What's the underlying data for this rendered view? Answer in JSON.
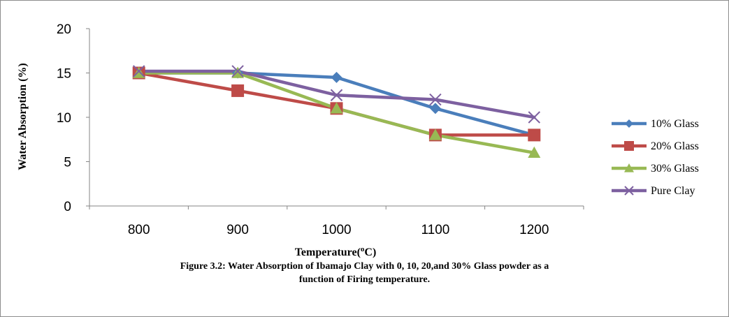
{
  "chart_data": {
    "type": "line",
    "categories": [
      "800",
      "900",
      "1000",
      "1100",
      "1200"
    ],
    "xlabel": "Temperature(oC)",
    "xlabel_main": "Temperature(",
    "xlabel_sup": "o",
    "xlabel_end": "C)",
    "ylabel": "Water Absorption (%)",
    "ylim": [
      0,
      20
    ],
    "yticks": [
      "0",
      "5",
      "10",
      "15",
      "20"
    ],
    "grid": false,
    "legend_position": "right",
    "series": [
      {
        "name": "10% Glass",
        "values": [
          15,
          15,
          14.5,
          11,
          8
        ],
        "color": "#4a7ebb",
        "marker": "diamond"
      },
      {
        "name": "20% Glass",
        "values": [
          15,
          13,
          11,
          8,
          8
        ],
        "color": "#be4b48",
        "marker": "square"
      },
      {
        "name": "30% Glass",
        "values": [
          15,
          15,
          11,
          8,
          6
        ],
        "color": "#98b954",
        "marker": "triangle"
      },
      {
        "name": "Pure Clay",
        "values": [
          15.2,
          15.2,
          12.5,
          12,
          10
        ],
        "color": "#7d60a0",
        "marker": "x"
      }
    ]
  },
  "caption": {
    "line1": "Figure 3.2: Water Absorption of  Ibamajo Clay with 0, 10, 20,and 30% Glass powder as a",
    "line2": "function of Firing temperature."
  }
}
